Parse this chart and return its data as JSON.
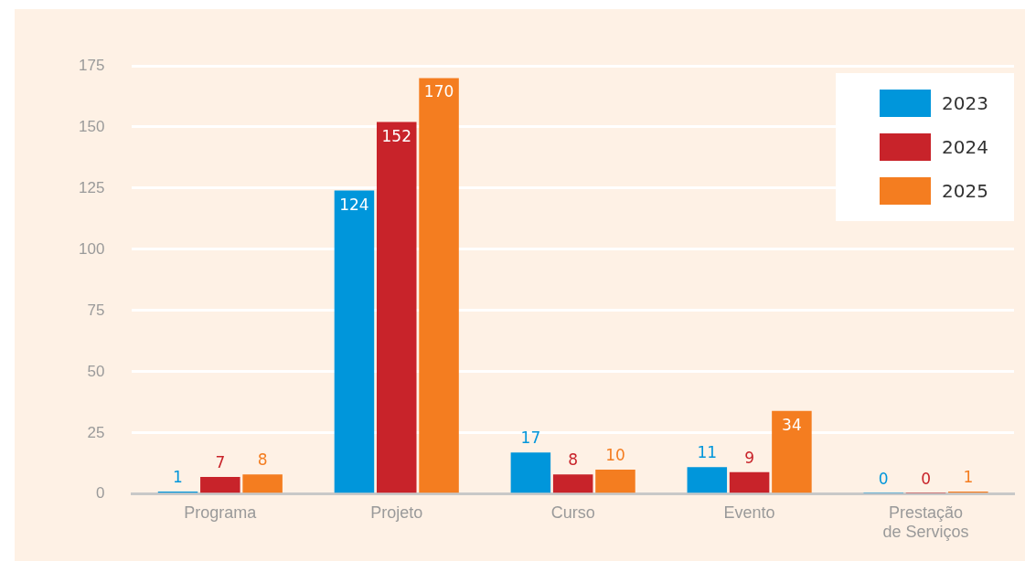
{
  "chart_data": {
    "type": "bar",
    "categories": [
      "Programa",
      "Projeto",
      "Curso",
      "Evento",
      "Prestação\nde Serviços"
    ],
    "series": [
      {
        "name": "2023",
        "color": "#0096db",
        "values": [
          1,
          124,
          17,
          11,
          0
        ]
      },
      {
        "name": "2024",
        "color": "#c8232a",
        "values": [
          7,
          152,
          8,
          9,
          0
        ]
      },
      {
        "name": "2025",
        "color": "#f47d20",
        "values": [
          8,
          170,
          10,
          34,
          1
        ]
      }
    ],
    "ylim": [
      0,
      175
    ],
    "yticks": [
      0,
      25,
      50,
      75,
      100,
      125,
      150,
      175
    ],
    "grid": "y",
    "legend": "top right",
    "data_labels": true
  }
}
